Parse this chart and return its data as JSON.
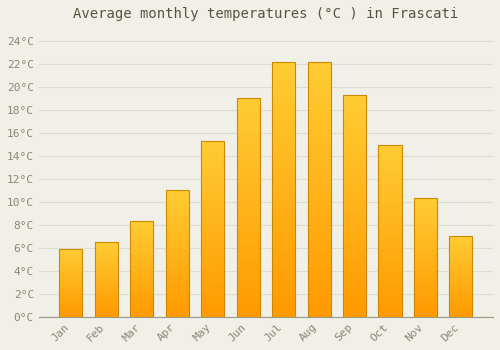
{
  "title": "Average monthly temperatures (°C ) in Frascati",
  "months": [
    "Jan",
    "Feb",
    "Mar",
    "Apr",
    "May",
    "Jun",
    "Jul",
    "Aug",
    "Sep",
    "Oct",
    "Nov",
    "Dec"
  ],
  "values": [
    5.9,
    6.5,
    8.3,
    11.0,
    15.3,
    19.0,
    22.1,
    22.1,
    19.3,
    14.9,
    10.3,
    7.0
  ],
  "bar_color_main": "#FFAA00",
  "bar_color_light": "#FFD040",
  "bar_color_edge": "#CC8800",
  "background_color": "#F0F0E8",
  "grid_color": "#DDDDCC",
  "ylim": [
    0,
    25
  ],
  "yticks": [
    0,
    2,
    4,
    6,
    8,
    10,
    12,
    14,
    16,
    18,
    20,
    22,
    24
  ],
  "ytick_labels": [
    "0°C",
    "2°C",
    "4°C",
    "6°C",
    "8°C",
    "10°C",
    "12°C",
    "14°C",
    "16°C",
    "18°C",
    "20°C",
    "22°C",
    "24°C"
  ],
  "title_fontsize": 10,
  "tick_fontsize": 8,
  "bar_width": 0.65
}
